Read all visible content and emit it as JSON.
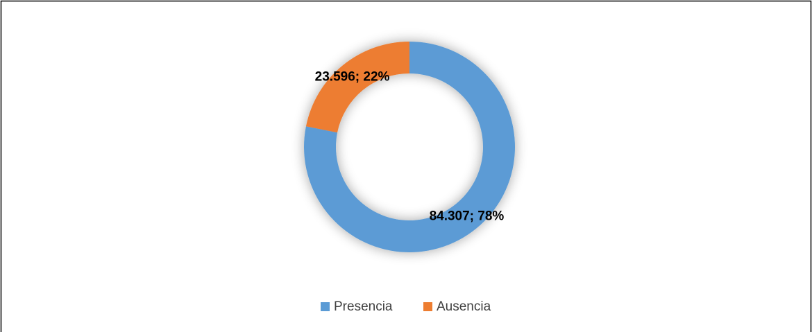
{
  "chart_data": {
    "type": "donut",
    "categories": [
      "Presencia",
      "Ausencia"
    ],
    "values": [
      84307,
      23596
    ],
    "value_labels": [
      "84.307; 78%",
      "23.596; 22%"
    ],
    "colors": [
      "#5b9bd5",
      "#ed7d31"
    ],
    "legend": "bottom"
  }
}
